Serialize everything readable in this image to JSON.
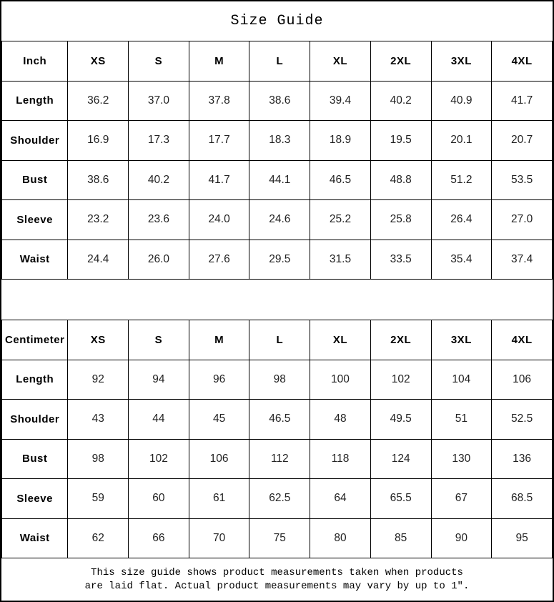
{
  "page": {
    "title": "Size Guide"
  },
  "tables": [
    {
      "unit_label": "Inch",
      "sizes": [
        "XS",
        "S",
        "M",
        "L",
        "XL",
        "2XL",
        "3XL",
        "4XL"
      ],
      "rows": [
        {
          "label": "Length",
          "values": [
            "36.2",
            "37.0",
            "37.8",
            "38.6",
            "39.4",
            "40.2",
            "40.9",
            "41.7"
          ]
        },
        {
          "label": "Shoulder",
          "values": [
            "16.9",
            "17.3",
            "17.7",
            "18.3",
            "18.9",
            "19.5",
            "20.1",
            "20.7"
          ]
        },
        {
          "label": "Bust",
          "values": [
            "38.6",
            "40.2",
            "41.7",
            "44.1",
            "46.5",
            "48.8",
            "51.2",
            "53.5"
          ]
        },
        {
          "label": "Sleeve",
          "values": [
            "23.2",
            "23.6",
            "24.0",
            "24.6",
            "25.2",
            "25.8",
            "26.4",
            "27.0"
          ]
        },
        {
          "label": "Waist",
          "values": [
            "24.4",
            "26.0",
            "27.6",
            "29.5",
            "31.5",
            "33.5",
            "35.4",
            "37.4"
          ]
        }
      ]
    },
    {
      "unit_label": "Centimeter",
      "sizes": [
        "XS",
        "S",
        "M",
        "L",
        "XL",
        "2XL",
        "3XL",
        "4XL"
      ],
      "rows": [
        {
          "label": "Length",
          "values": [
            "92",
            "94",
            "96",
            "98",
            "100",
            "102",
            "104",
            "106"
          ]
        },
        {
          "label": "Shoulder",
          "values": [
            "43",
            "44",
            "45",
            "46.5",
            "48",
            "49.5",
            "51",
            "52.5"
          ]
        },
        {
          "label": "Bust",
          "values": [
            "98",
            "102",
            "106",
            "112",
            "118",
            "124",
            "130",
            "136"
          ]
        },
        {
          "label": "Sleeve",
          "values": [
            "59",
            "60",
            "61",
            "62.5",
            "64",
            "65.5",
            "67",
            "68.5"
          ]
        },
        {
          "label": "Waist",
          "values": [
            "62",
            "66",
            "70",
            "75",
            "80",
            "85",
            "90",
            "95"
          ]
        }
      ]
    }
  ],
  "note": {
    "line1": "This size guide shows product measurements taken when products",
    "line2": "are laid flat. Actual product measurements may vary by up to 1″."
  }
}
